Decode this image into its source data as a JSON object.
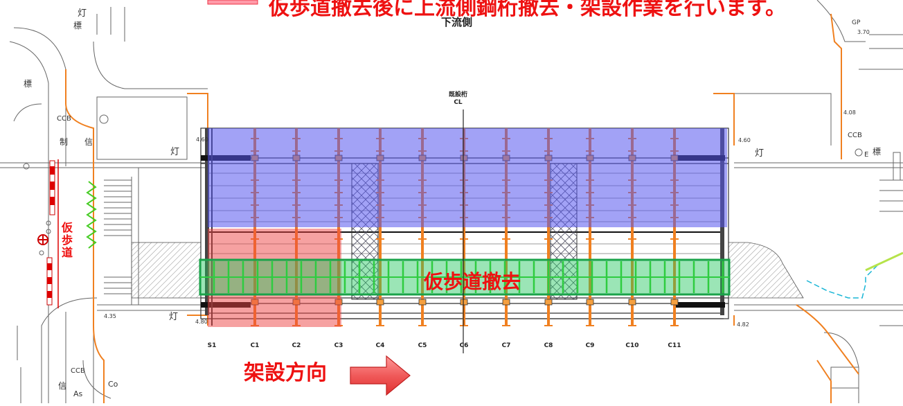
{
  "title_partial": "仮歩道撤去後に上流側鋼桁撤去・架設作業を行います。",
  "downstream_label": "下流側",
  "girder_label": "既設桁",
  "girder_cl": "CL",
  "removal_label": "仮歩道撤去",
  "direction_label": "架設方向",
  "temp_walkway_label": "仮歩道",
  "girder_ticks": [
    "S1",
    "C1",
    "C2",
    "C3",
    "C4",
    "C5",
    "C6",
    "C7",
    "C8",
    "C9",
    "C10",
    "C11"
  ],
  "map_labels": {
    "ccb_left_top": "CCB",
    "ccb_left_bottom": "CCB",
    "ccb_right": "CCB",
    "lamp_left": "灯",
    "lamp_left_bottom": "灯",
    "lamp_right": "灯",
    "lamp_top": "灯",
    "sign_top": "標",
    "sign_left": "標",
    "sign_right": "標",
    "signal_left": "信",
    "signal_left_bottom": "信",
    "control_left": "制",
    "as": "As",
    "co": "Co",
    "e_label": "E",
    "gp_label": "GP",
    "dim_1": "4.60",
    "dim_2": "4.35",
    "dim_3": "4.60",
    "dim_4": "4.80",
    "dim_5": "4.82",
    "dim_6": "3.70",
    "dim_7": "4.08"
  },
  "colors": {
    "blue_zone": "#6e6ef0",
    "pink_zone": "#f28a8a",
    "green_zone": "#22c55e",
    "orange_member": "#f08020",
    "red_text": "#ee1111",
    "arrow_fill": "#f05a5a"
  }
}
